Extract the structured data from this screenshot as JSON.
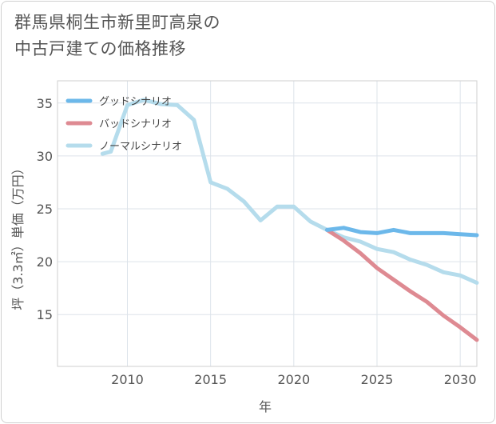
{
  "title": {
    "line1": "群馬県桐生市新里町高泉の",
    "line2": "中古戸建ての価格推移"
  },
  "chart_data": {
    "type": "line",
    "xlabel": "年",
    "ylabel": "坪（3.3㎡）単価（万円）",
    "xlim": [
      2005.8,
      2031
    ],
    "ylim": [
      10.1,
      37.1
    ],
    "xticks": [
      2010,
      2015,
      2020,
      2025,
      2030
    ],
    "yticks": [
      15,
      20,
      25,
      30,
      35
    ],
    "grid": true,
    "legend_position": "top-left",
    "series": [
      {
        "name": "グッドシナリオ",
        "color": "#6cb8ea",
        "x": [
          2022,
          2023,
          2024,
          2025,
          2026,
          2027,
          2028,
          2029,
          2030,
          2031
        ],
        "y": [
          23.0,
          23.2,
          22.8,
          22.7,
          23.0,
          22.7,
          22.7,
          22.7,
          22.6,
          22.5
        ]
      },
      {
        "name": "バッドシナリオ",
        "color": "#de8a92",
        "x": [
          2022,
          2023,
          2024,
          2025,
          2026,
          2027,
          2028,
          2029,
          2030,
          2031
        ],
        "y": [
          23.0,
          22.0,
          20.8,
          19.4,
          18.3,
          17.2,
          16.2,
          14.9,
          13.8,
          12.6
        ]
      },
      {
        "name": "ノーマルシナリオ",
        "color": "#b5dcec",
        "x": [
          2008.5,
          2009,
          2010,
          2011,
          2012,
          2013,
          2014,
          2015,
          2016,
          2017,
          2018,
          2019,
          2020,
          2021,
          2022,
          2023,
          2024,
          2025,
          2026,
          2027,
          2028,
          2029,
          2030,
          2031
        ],
        "y": [
          30.2,
          30.4,
          34.8,
          35.3,
          34.9,
          34.8,
          33.4,
          27.5,
          26.9,
          25.7,
          23.9,
          25.2,
          25.2,
          23.8,
          23.0,
          22.3,
          21.9,
          21.2,
          20.9,
          20.2,
          19.7,
          19.0,
          18.7,
          18.0
        ]
      }
    ]
  }
}
